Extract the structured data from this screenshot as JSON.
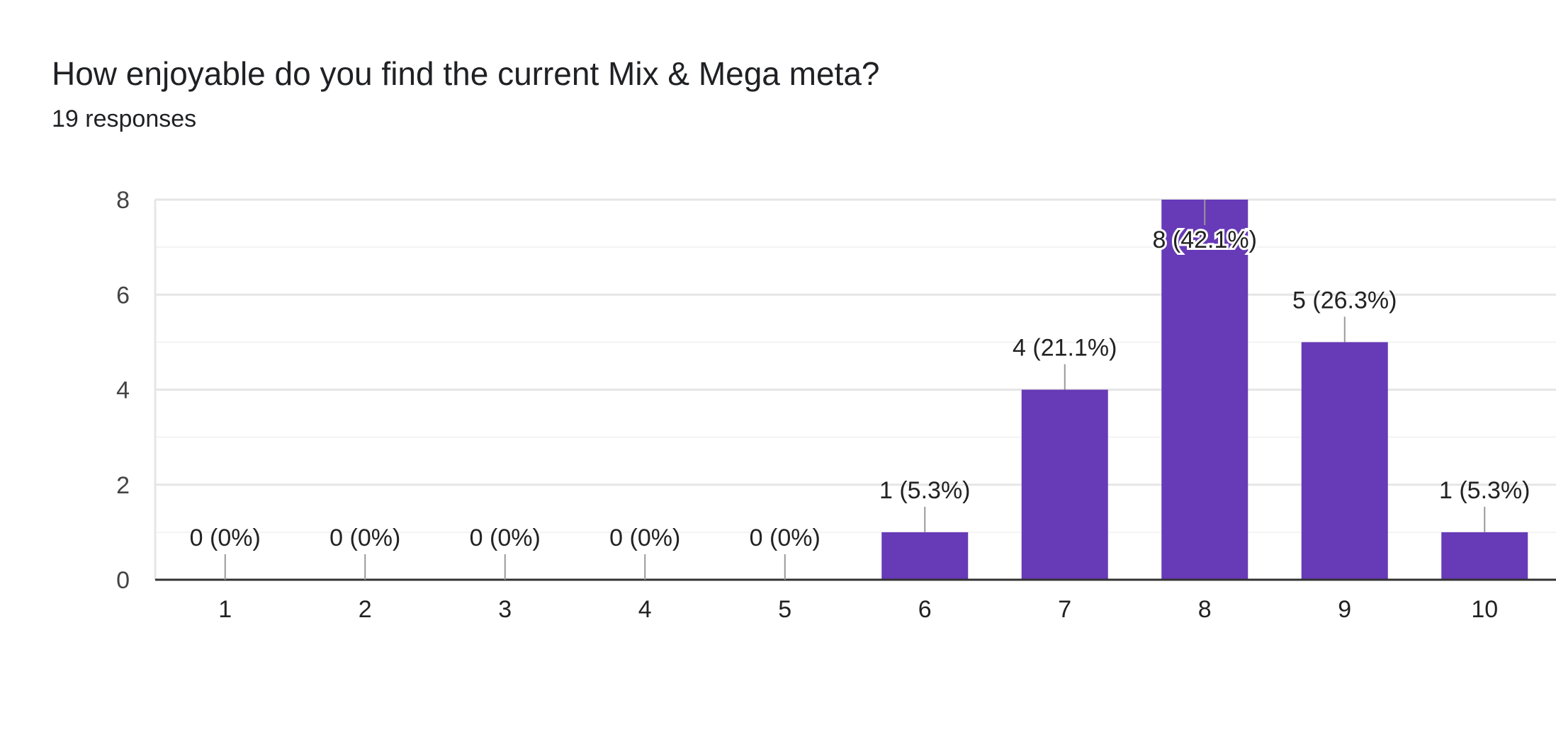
{
  "question": {
    "title": "How enjoyable do you find the current Mix & Mega meta?",
    "responses": "19 responses"
  },
  "colors": {
    "bar": "#673ab7",
    "grid_major": "#e6e6e6",
    "grid_minor": "#f3f3f3",
    "baseline": "#333333",
    "leader": "#999999"
  },
  "chart_data": {
    "type": "bar",
    "title": "",
    "xlabel": "",
    "ylabel": "",
    "categories": [
      "1",
      "2",
      "3",
      "4",
      "5",
      "6",
      "7",
      "8",
      "9",
      "10"
    ],
    "values": [
      0,
      0,
      0,
      0,
      0,
      1,
      4,
      8,
      5,
      1
    ],
    "data_labels": [
      "0 (0%)",
      "0 (0%)",
      "0 (0%)",
      "0 (0%)",
      "0 (0%)",
      "1 (5.3%)",
      "4 (21.1%)",
      "8 (42.1%)",
      "5 (26.3%)",
      "1 (5.3%)"
    ],
    "ylim": [
      0,
      8
    ],
    "yticks": [
      0,
      2,
      4,
      6,
      8
    ],
    "grid": true,
    "legend": "none"
  }
}
